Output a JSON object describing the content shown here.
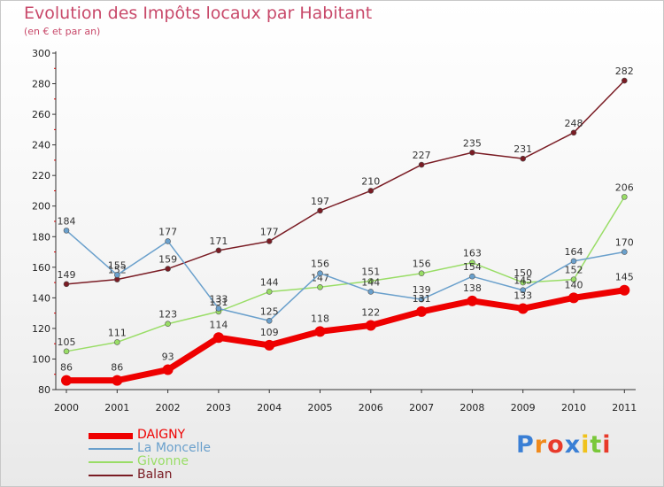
{
  "chart_data": {
    "type": "line",
    "title": "Evolution des Impôts locaux par Habitant",
    "subtitle": "(en € et par an)",
    "x": [
      "2000",
      "2001",
      "2002",
      "2003",
      "2004",
      "2005",
      "2006",
      "2007",
      "2008",
      "2009",
      "2010",
      "2011"
    ],
    "ylim": [
      80,
      300
    ],
    "yticks": [
      80,
      100,
      120,
      140,
      160,
      180,
      200,
      220,
      240,
      260,
      280,
      300
    ],
    "grid": false,
    "legend_position": "bottom-left",
    "series": [
      {
        "name": "Balan",
        "color": "#7a1c24",
        "values": [
          149,
          152,
          159,
          171,
          177,
          197,
          210,
          227,
          235,
          231,
          248,
          282
        ]
      },
      {
        "name": "Givonne",
        "color": "#99dd66",
        "values": [
          105,
          111,
          123,
          131,
          144,
          147,
          151,
          156,
          163,
          150,
          152,
          206
        ]
      },
      {
        "name": "La Moncelle",
        "color": "#6aa0cc",
        "values": [
          184,
          155,
          177,
          133,
          125,
          156,
          144,
          139,
          154,
          145,
          164,
          170
        ]
      },
      {
        "name": "DAIGNY",
        "color": "#ee0000",
        "values": [
          86,
          86,
          93,
          114,
          109,
          118,
          122,
          131,
          138,
          133,
          140,
          145
        ]
      }
    ],
    "legend": [
      {
        "name": "DAIGNY",
        "color": "#ee0000"
      },
      {
        "name": "La Moncelle",
        "color": "#6aa0cc"
      },
      {
        "name": "Givonne",
        "color": "#99dd66"
      },
      {
        "name": "Balan",
        "color": "#7a1c24"
      }
    ]
  },
  "logo": {
    "text": "Proxiti",
    "letters": [
      {
        "ch": "P",
        "color": "#3a7fd5"
      },
      {
        "ch": "r",
        "color": "#f08a1c"
      },
      {
        "ch": "o",
        "color": "#e83a2a"
      },
      {
        "ch": "x",
        "color": "#3a7fd5"
      },
      {
        "ch": "i",
        "color": "#f0c21c"
      },
      {
        "ch": "t",
        "color": "#7ac83a"
      },
      {
        "ch": "i",
        "color": "#e83a2a"
      }
    ]
  }
}
